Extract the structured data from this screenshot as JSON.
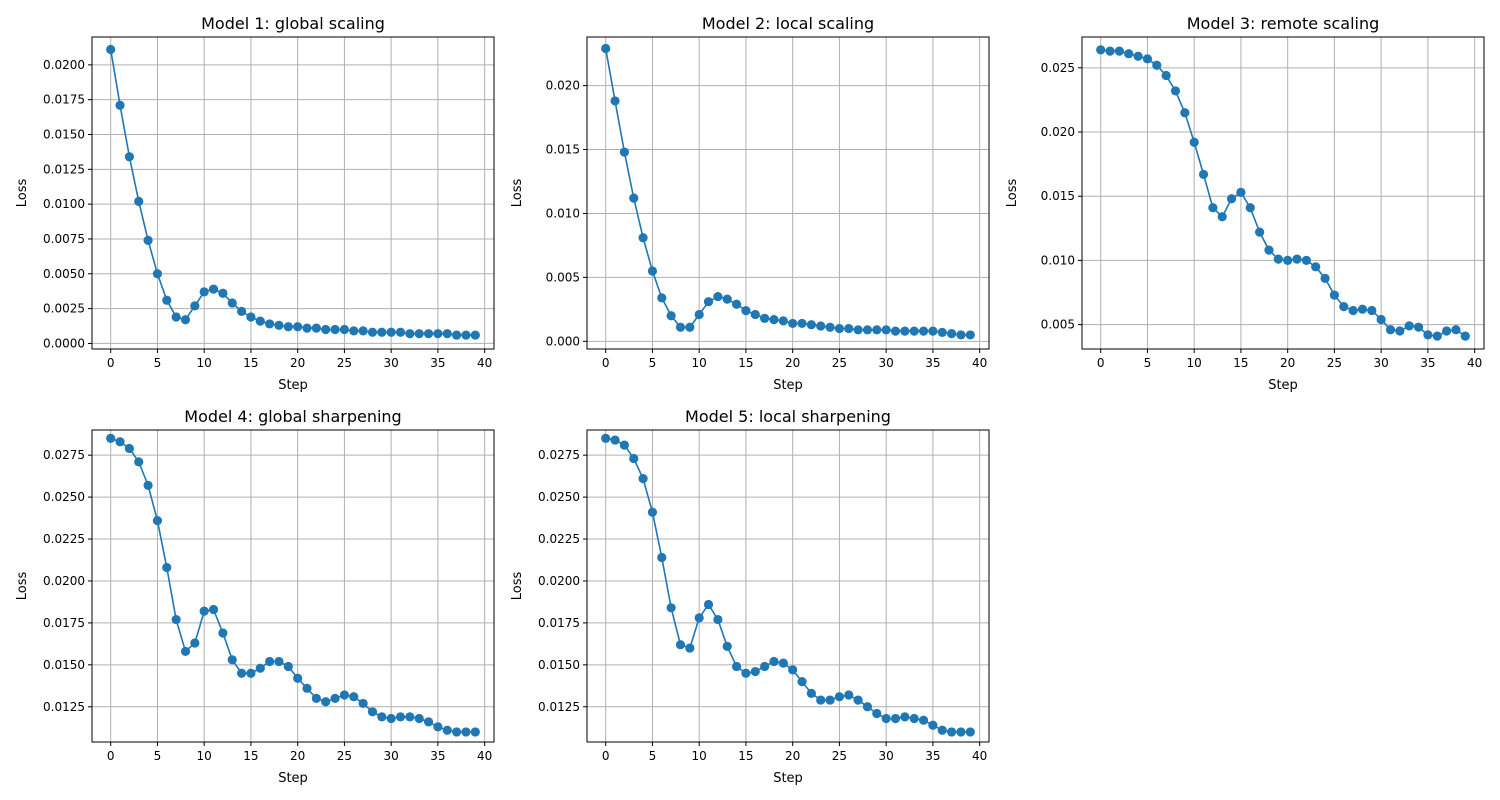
{
  "figure": {
    "suptitle": ""
  },
  "colors": {
    "series": "#1f77b4",
    "grid": "#b0b0b0",
    "background": "#ffffff"
  },
  "chart_data": [
    {
      "type": "line",
      "title": "Model 1: global scaling",
      "xlabel": "Step",
      "ylabel": "Loss",
      "grid": true,
      "marker": "circle",
      "xlim": [
        -2,
        41
      ],
      "ylim": [
        -0.0004,
        0.022
      ],
      "xticks": [
        0,
        5,
        10,
        15,
        20,
        25,
        30,
        35,
        40
      ],
      "yticks": [
        "0.0000",
        "0.0025",
        "0.0050",
        "0.0075",
        "0.0100",
        "0.0125",
        "0.0150",
        "0.0175",
        "0.0200"
      ],
      "x": [
        0,
        1,
        2,
        3,
        4,
        5,
        6,
        7,
        8,
        9,
        10,
        11,
        12,
        13,
        14,
        15,
        16,
        17,
        18,
        19,
        20,
        21,
        22,
        23,
        24,
        25,
        26,
        27,
        28,
        29,
        30,
        31,
        32,
        33,
        34,
        35,
        36,
        37,
        38,
        39
      ],
      "y": [
        0.0211,
        0.0171,
        0.0134,
        0.0102,
        0.0074,
        0.005,
        0.0031,
        0.0019,
        0.0017,
        0.0027,
        0.0037,
        0.0039,
        0.0036,
        0.0029,
        0.0023,
        0.0019,
        0.0016,
        0.0014,
        0.0013,
        0.0012,
        0.0012,
        0.0011,
        0.0011,
        0.001,
        0.001,
        0.001,
        0.0009,
        0.0009,
        0.0008,
        0.0008,
        0.0008,
        0.0008,
        0.0007,
        0.0007,
        0.0007,
        0.0007,
        0.0007,
        0.0006,
        0.0006,
        0.0006
      ]
    },
    {
      "type": "line",
      "title": "Model 2: local scaling",
      "xlabel": "Step",
      "ylabel": "Loss",
      "grid": true,
      "marker": "circle",
      "xlim": [
        -2,
        41
      ],
      "ylim": [
        -0.0006,
        0.0238
      ],
      "xticks": [
        0,
        5,
        10,
        15,
        20,
        25,
        30,
        35,
        40
      ],
      "yticks": [
        "0.000",
        "0.005",
        "0.010",
        "0.015",
        "0.020"
      ],
      "x": [
        0,
        1,
        2,
        3,
        4,
        5,
        6,
        7,
        8,
        9,
        10,
        11,
        12,
        13,
        14,
        15,
        16,
        17,
        18,
        19,
        20,
        21,
        22,
        23,
        24,
        25,
        26,
        27,
        28,
        29,
        30,
        31,
        32,
        33,
        34,
        35,
        36,
        37,
        38,
        39
      ],
      "y": [
        0.0229,
        0.0188,
        0.0148,
        0.0112,
        0.0081,
        0.0055,
        0.0034,
        0.002,
        0.0011,
        0.0011,
        0.0021,
        0.0031,
        0.0035,
        0.0033,
        0.0029,
        0.0024,
        0.0021,
        0.0018,
        0.0017,
        0.0016,
        0.0014,
        0.0014,
        0.0013,
        0.0012,
        0.0011,
        0.001,
        0.001,
        0.0009,
        0.0009,
        0.0009,
        0.0009,
        0.0008,
        0.0008,
        0.0008,
        0.0008,
        0.0008,
        0.0007,
        0.0006,
        0.0005,
        0.0005
      ]
    },
    {
      "type": "line",
      "title": "Model 3: remote scaling",
      "xlabel": "Step",
      "ylabel": "Loss",
      "grid": true,
      "marker": "circle",
      "xlim": [
        -2,
        41
      ],
      "ylim": [
        0.0031,
        0.0274
      ],
      "xticks": [
        0,
        5,
        10,
        15,
        20,
        25,
        30,
        35,
        40
      ],
      "yticks": [
        "0.005",
        "0.010",
        "0.015",
        "0.020",
        "0.025"
      ],
      "x": [
        0,
        1,
        2,
        3,
        4,
        5,
        6,
        7,
        8,
        9,
        10,
        11,
        12,
        13,
        14,
        15,
        16,
        17,
        18,
        19,
        20,
        21,
        22,
        23,
        24,
        25,
        26,
        27,
        28,
        29,
        30,
        31,
        32,
        33,
        34,
        35,
        36,
        37,
        38,
        39
      ],
      "y": [
        0.0264,
        0.0263,
        0.0263,
        0.0261,
        0.0259,
        0.0257,
        0.0252,
        0.0244,
        0.0232,
        0.0215,
        0.0192,
        0.0167,
        0.0141,
        0.0134,
        0.0148,
        0.0153,
        0.0141,
        0.0122,
        0.0108,
        0.0101,
        0.01,
        0.0101,
        0.01,
        0.0095,
        0.0086,
        0.0073,
        0.0064,
        0.0061,
        0.0062,
        0.0061,
        0.0054,
        0.0046,
        0.0045,
        0.0049,
        0.0048,
        0.0042,
        0.0041,
        0.0045,
        0.0046,
        0.0041
      ]
    },
    {
      "type": "line",
      "title": "Model 4: global sharpening",
      "xlabel": "Step",
      "ylabel": "Loss",
      "grid": true,
      "marker": "circle",
      "xlim": [
        -2,
        41
      ],
      "ylim": [
        0.0104,
        0.029
      ],
      "xticks": [
        0,
        5,
        10,
        15,
        20,
        25,
        30,
        35,
        40
      ],
      "yticks": [
        "0.0125",
        "0.0150",
        "0.0175",
        "0.0200",
        "0.0225",
        "0.0250",
        "0.0275"
      ],
      "x": [
        0,
        1,
        2,
        3,
        4,
        5,
        6,
        7,
        8,
        9,
        10,
        11,
        12,
        13,
        14,
        15,
        16,
        17,
        18,
        19,
        20,
        21,
        22,
        23,
        24,
        25,
        26,
        27,
        28,
        29,
        30,
        31,
        32,
        33,
        34,
        35,
        36,
        37,
        38,
        39
      ],
      "y": [
        0.0285,
        0.0283,
        0.0279,
        0.0271,
        0.0257,
        0.0236,
        0.0208,
        0.0177,
        0.0158,
        0.0163,
        0.0182,
        0.0183,
        0.0169,
        0.0153,
        0.0145,
        0.0145,
        0.0148,
        0.0152,
        0.0152,
        0.0149,
        0.0142,
        0.0136,
        0.013,
        0.0128,
        0.013,
        0.0132,
        0.0131,
        0.0127,
        0.0122,
        0.0119,
        0.0118,
        0.0119,
        0.0119,
        0.0118,
        0.0116,
        0.0113,
        0.0111,
        0.011,
        0.011,
        0.011
      ]
    },
    {
      "type": "line",
      "title": "Model 5: local sharpening",
      "xlabel": "Step",
      "ylabel": "Loss",
      "grid": true,
      "marker": "circle",
      "xlim": [
        -2,
        41
      ],
      "ylim": [
        0.0104,
        0.029
      ],
      "xticks": [
        0,
        5,
        10,
        15,
        20,
        25,
        30,
        35,
        40
      ],
      "yticks": [
        "0.0125",
        "0.0150",
        "0.0175",
        "0.0200",
        "0.0225",
        "0.0250",
        "0.0275"
      ],
      "x": [
        0,
        1,
        2,
        3,
        4,
        5,
        6,
        7,
        8,
        9,
        10,
        11,
        12,
        13,
        14,
        15,
        16,
        17,
        18,
        19,
        20,
        21,
        22,
        23,
        24,
        25,
        26,
        27,
        28,
        29,
        30,
        31,
        32,
        33,
        34,
        35,
        36,
        37,
        38,
        39
      ],
      "y": [
        0.0285,
        0.0284,
        0.0281,
        0.0273,
        0.0261,
        0.0241,
        0.0214,
        0.0184,
        0.0162,
        0.016,
        0.0178,
        0.0186,
        0.0177,
        0.0161,
        0.0149,
        0.0145,
        0.0146,
        0.0149,
        0.0152,
        0.0151,
        0.0147,
        0.014,
        0.0133,
        0.0129,
        0.0129,
        0.0131,
        0.0132,
        0.0129,
        0.0125,
        0.0121,
        0.0118,
        0.0118,
        0.0119,
        0.0118,
        0.0117,
        0.0114,
        0.0111,
        0.011,
        0.011,
        0.011
      ]
    }
  ]
}
